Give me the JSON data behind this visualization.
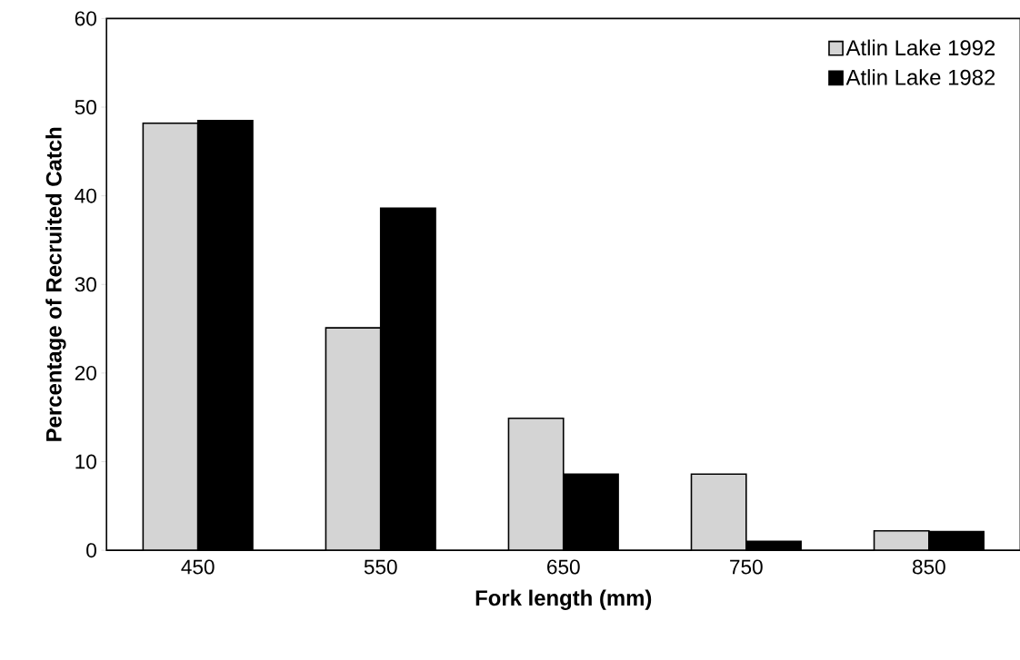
{
  "chart_data": {
    "type": "bar",
    "xlabel": "Fork length (mm)",
    "ylabel": "Percentage of Recruited Catch",
    "categories": [
      "450",
      "550",
      "650",
      "750",
      "850"
    ],
    "series": [
      {
        "name": "Atlin Lake 1992",
        "color": "#d4d4d4",
        "values": [
          48.2,
          25.1,
          14.9,
          8.6,
          2.2
        ]
      },
      {
        "name": "Atlin Lake 1982",
        "color": "#000000",
        "values": [
          48.5,
          38.6,
          8.6,
          1.0,
          2.1
        ]
      }
    ],
    "ylim": [
      0,
      60
    ],
    "yticks": [
      0,
      10,
      20,
      30,
      40,
      50,
      60
    ],
    "grid": false,
    "legend": "top right"
  }
}
